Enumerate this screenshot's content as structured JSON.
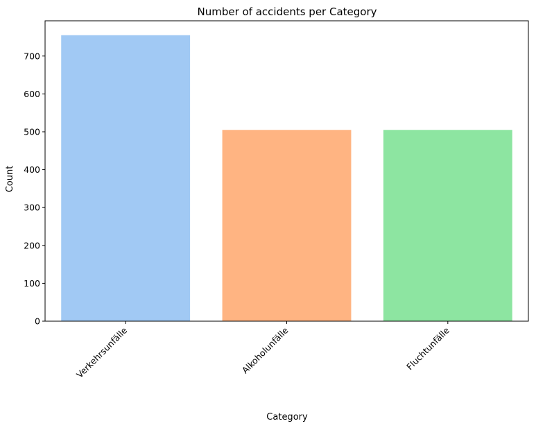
{
  "chart_data": {
    "type": "bar",
    "title": "Number of accidents per Category",
    "xlabel": "Category",
    "ylabel": "Count",
    "categories": [
      "Verkehrsunfälle",
      "Alkoholunfälle",
      "Fluchtunfälle"
    ],
    "values": [
      755,
      505,
      505
    ],
    "colors": [
      "#a1c9f4",
      "#ffb482",
      "#8de5a1"
    ],
    "ylim": [
      0,
      793
    ],
    "yticks": [
      0,
      100,
      200,
      300,
      400,
      500,
      600,
      700
    ],
    "grid": false,
    "legend": "none"
  }
}
